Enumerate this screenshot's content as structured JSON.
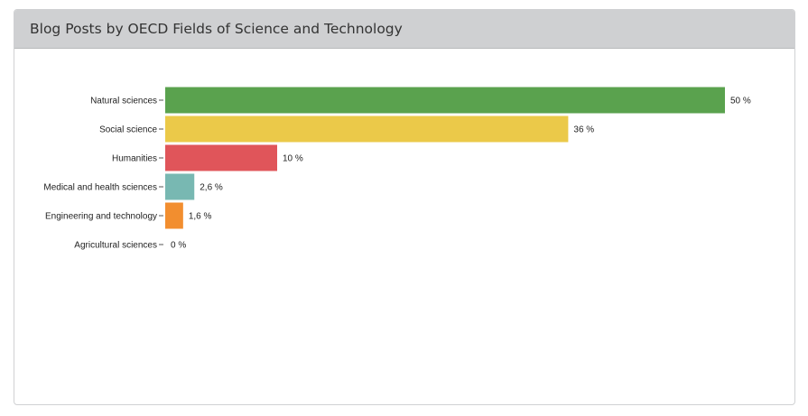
{
  "panel": {
    "title": "Blog Posts by OECD Fields of Science and Technology"
  },
  "chart_data": {
    "type": "bar",
    "orientation": "horizontal",
    "title": "Blog Posts by OECD Fields of Science and Technology",
    "categories": [
      "Natural sciences",
      "Social science",
      "Humanities",
      "Medical and health sciences",
      "Engineering and technology",
      "Agricultural sciences"
    ],
    "values": [
      50,
      36,
      10,
      2.6,
      1.6,
      0
    ],
    "value_labels": [
      "50 %",
      "36 %",
      "10 %",
      "2,6 %",
      "1,6 %",
      "0 %"
    ],
    "colors": [
      "#5aa24e",
      "#ebc949",
      "#e0555a",
      "#78b8b2",
      "#f28e2f",
      "#cccccc"
    ],
    "unit": "%",
    "xlim": [
      0,
      50
    ],
    "grid": false
  }
}
